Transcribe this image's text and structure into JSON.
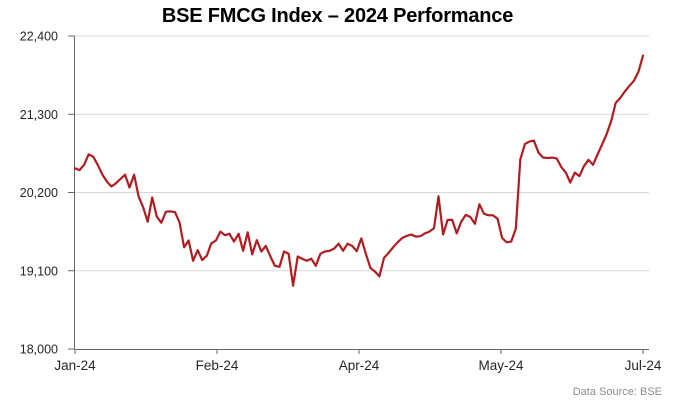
{
  "title": "BSE FMCG Index – 2024 Performance",
  "source_note": "Data Source: BSE",
  "colors": {
    "background": "#ffffff",
    "line": "#b11c21",
    "grid": "#d8d8d8",
    "axis": "#666666",
    "title_text": "#000000",
    "tick_text": "#262626",
    "source_text": "#8c8c8c"
  },
  "chart_data": {
    "type": "line",
    "title": "BSE FMCG Index – 2024 Performance",
    "xlabel": "",
    "ylabel": "",
    "legend": "none",
    "grid": "horizontal",
    "ylim": [
      18000,
      22400
    ],
    "y_ticks": [
      22400,
      21300,
      20200,
      19100,
      18000
    ],
    "y_tick_labels": [
      "22,400",
      "21,300",
      "20,200",
      "19,100",
      "18,000"
    ],
    "x_tick_labels": [
      "Jan-24",
      "Feb-24",
      "Apr-24",
      "May-24",
      "Jul-24"
    ],
    "series": [
      {
        "name": "BSE FMCG Index",
        "values": [
          20540,
          20515,
          20590,
          20735,
          20705,
          20590,
          20455,
          20355,
          20285,
          20330,
          20390,
          20450,
          20270,
          20450,
          20145,
          19990,
          19790,
          20130,
          19860,
          19775,
          19930,
          19935,
          19925,
          19780,
          19430,
          19525,
          19240,
          19390,
          19250,
          19310,
          19485,
          19525,
          19650,
          19600,
          19620,
          19510,
          19620,
          19380,
          19640,
          19330,
          19530,
          19370,
          19450,
          19300,
          19170,
          19155,
          19370,
          19340,
          18890,
          19300,
          19270,
          19240,
          19270,
          19170,
          19340,
          19370,
          19380,
          19410,
          19480,
          19380,
          19480,
          19450,
          19375,
          19555,
          19340,
          19140,
          19090,
          19020,
          19280,
          19350,
          19430,
          19500,
          19560,
          19590,
          19610,
          19580,
          19585,
          19625,
          19650,
          19700,
          20145,
          19610,
          19815,
          19815,
          19625,
          19790,
          19885,
          19855,
          19760,
          20035,
          19900,
          19880,
          19880,
          19830,
          19560,
          19500,
          19510,
          19690,
          20665,
          20880,
          20915,
          20930,
          20760,
          20692,
          20685,
          20690,
          20680,
          20560,
          20480,
          20340,
          20480,
          20430,
          20570,
          20660,
          20590,
          20735,
          20875,
          21020,
          21205,
          21460,
          21530,
          21620,
          21700,
          21770,
          21900,
          22125
        ]
      }
    ]
  }
}
